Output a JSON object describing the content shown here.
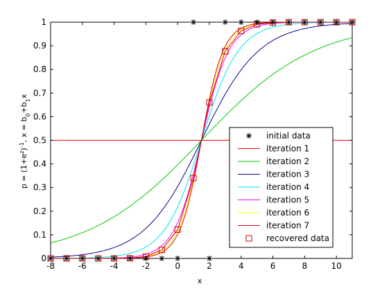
{
  "chart_data": {
    "type": "line",
    "xlabel": "x",
    "ylabel_parts": {
      "a": "p = (1+e",
      "a_sup": "z",
      "b": ")",
      "b_sup": "-1",
      "c": ", x = b",
      "c_sub": "0",
      "d": "+b",
      "d_sub": "1",
      "e": "x"
    },
    "xlim": [
      -8,
      11
    ],
    "ylim": [
      0,
      1
    ],
    "xticks": [
      -8,
      -6,
      -4,
      -2,
      0,
      2,
      4,
      6,
      8,
      10
    ],
    "yticks": [
      0,
      0.1,
      0.2,
      0.3,
      0.4,
      0.5,
      0.6,
      0.7,
      0.8,
      0.9,
      1
    ],
    "x": [
      -8,
      -7,
      -6,
      -5,
      -4,
      -3,
      -2,
      -1,
      0,
      1,
      2,
      3,
      4,
      5,
      6,
      7,
      8,
      9,
      10,
      11
    ],
    "center": 1.5,
    "initial_data": {
      "name": "initial data",
      "color": "#000000",
      "x": [
        -8,
        -7,
        -6,
        -5,
        -4,
        -3,
        -2,
        -1,
        0,
        1,
        2,
        3,
        4,
        5,
        6,
        7,
        8,
        9,
        10,
        11
      ],
      "y": [
        0,
        0,
        0,
        0,
        0,
        0,
        0,
        0,
        0,
        1,
        0,
        1,
        1,
        1,
        1,
        1,
        1,
        1,
        1,
        1
      ]
    },
    "series": [
      {
        "name": "iteration 1",
        "color": "#ff0000",
        "slope": 0
      },
      {
        "name": "iteration 2",
        "color": "#00cc00",
        "slope": 0.28
      },
      {
        "name": "iteration 3",
        "color": "#00008b",
        "slope": 0.55
      },
      {
        "name": "iteration 4",
        "color": "#00e5ee",
        "slope": 0.85
      },
      {
        "name": "iteration 5",
        "color": "#ff00ff",
        "slope": 1.15
      },
      {
        "name": "iteration 6",
        "color": "#ffff00",
        "slope": 1.35
      },
      {
        "name": "iteration 7",
        "color": "#dd0000",
        "slope": 1.45
      }
    ],
    "recovered_data": {
      "name": "recovered data",
      "color": "#cc0000",
      "y": [
        0.0,
        0.0,
        0.0,
        0.0,
        0.0,
        0.001,
        0.008,
        0.036,
        0.122,
        0.34,
        0.66,
        0.877,
        0.963,
        0.991,
        0.998,
        1.0,
        1.0,
        1.0,
        1.0,
        1.0
      ]
    },
    "legend": {
      "placement": "lower-right",
      "entries": [
        "initial data",
        "iteration 1",
        "iteration 2",
        "iteration 3",
        "iteration 4",
        "iteration 5",
        "iteration 6",
        "iteration 7",
        "recovered data"
      ]
    }
  }
}
